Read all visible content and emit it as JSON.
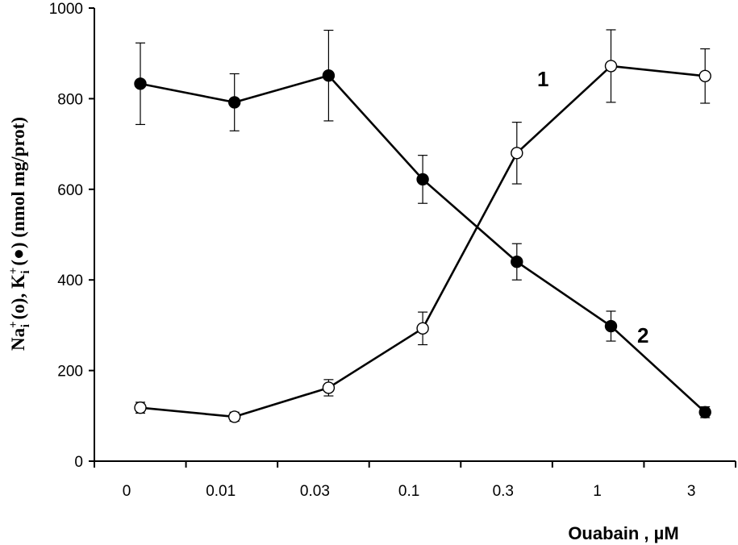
{
  "chart_data": {
    "type": "line",
    "categories": [
      "0",
      "0.01",
      "0.03",
      "0.1",
      "0.3",
      "1",
      "3"
    ],
    "xlabel": "Ouabain , µM",
    "ylabel": {
      "parts": [
        "Na",
        "+",
        "i",
        " (o), K",
        "+",
        "i",
        " (●) (nmol mg/prot)"
      ]
    },
    "ylim": [
      0,
      1000
    ],
    "yticks": [
      0,
      200,
      400,
      600,
      800,
      1000
    ],
    "grid": false,
    "series": [
      {
        "name": "1",
        "marker": "open-circle",
        "values": [
          118,
          98,
          162,
          293,
          680,
          872,
          850
        ],
        "errors": [
          12,
          10,
          18,
          36,
          68,
          80,
          60
        ]
      },
      {
        "name": "2",
        "marker": "filled-circle",
        "values": [
          833,
          792,
          851,
          622,
          440,
          298,
          108
        ],
        "errors": [
          90,
          63,
          100,
          53,
          40,
          33,
          12
        ]
      }
    ]
  }
}
